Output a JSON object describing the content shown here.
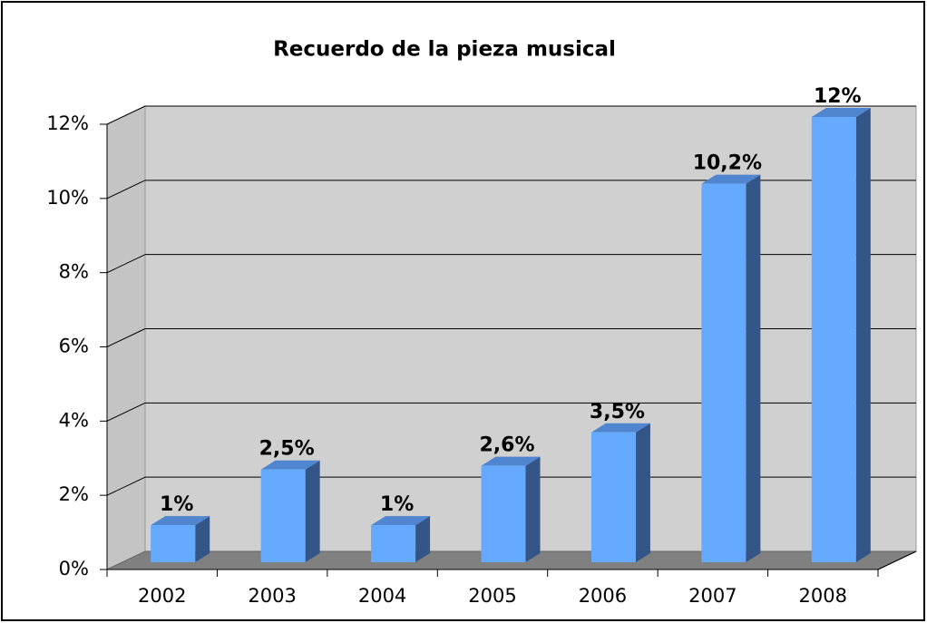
{
  "chart_data": {
    "type": "bar3d",
    "title": "Recuerdo de la pieza musical",
    "categories": [
      "2002",
      "2003",
      "2004",
      "2005",
      "2006",
      "2007",
      "2008"
    ],
    "values": [
      1,
      2.5,
      1,
      2.6,
      3.5,
      10.2,
      12
    ],
    "value_labels": [
      "1%",
      "2,5%",
      "1%",
      "2,6%",
      "3,5%",
      "10,2%",
      "12%"
    ],
    "color": "#66aaff",
    "ylim": [
      0,
      12
    ],
    "yticks": [
      {
        "value": 0,
        "label": "0%"
      },
      {
        "value": 2,
        "label": "2%"
      },
      {
        "value": 4,
        "label": "4%"
      },
      {
        "value": 6,
        "label": "6%"
      },
      {
        "value": 8,
        "label": "8%"
      },
      {
        "value": 10,
        "label": "10%"
      },
      {
        "value": 12,
        "label": "12%"
      }
    ],
    "grid": true
  }
}
